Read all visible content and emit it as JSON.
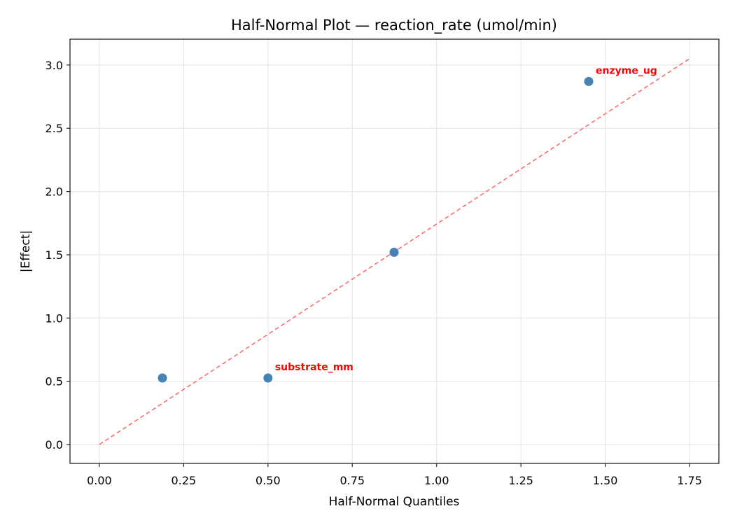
{
  "chart_data": {
    "type": "scatter",
    "title": "Half-Normal Plot — reaction_rate (umol/min)",
    "xlabel": "Half-Normal Quantiles",
    "ylabel": "|Effect|",
    "xlim": [
      -0.087,
      1.837
    ],
    "ylim": [
      -0.149,
      3.204
    ],
    "xticks": [
      0.0,
      0.25,
      0.5,
      0.75,
      1.0,
      1.25,
      1.5,
      1.75
    ],
    "xtick_labels": [
      "0.00",
      "0.25",
      "0.50",
      "0.75",
      "1.00",
      "1.25",
      "1.50",
      "1.75"
    ],
    "yticks": [
      0.0,
      0.5,
      1.0,
      1.5,
      2.0,
      2.5,
      3.0
    ],
    "ytick_labels": [
      "0.0",
      "0.5",
      "1.0",
      "1.5",
      "2.0",
      "2.5",
      "3.0"
    ],
    "grid": true,
    "points": [
      {
        "x": 0.187,
        "y": 0.526,
        "label": ""
      },
      {
        "x": 0.5,
        "y": 0.526,
        "label": "substrate_mm"
      },
      {
        "x": 0.874,
        "y": 1.52,
        "label": ""
      },
      {
        "x": 1.451,
        "y": 2.87,
        "label": "enzyme_ug"
      }
    ],
    "reference_line": {
      "x": [
        0.0,
        1.75
      ],
      "y": [
        0.0,
        3.05
      ],
      "style": "dashed",
      "color": "#ff6666"
    },
    "colors": {
      "points": "#4682b4",
      "annotation": "#ff0000",
      "reference_line": "#ff6666"
    }
  }
}
